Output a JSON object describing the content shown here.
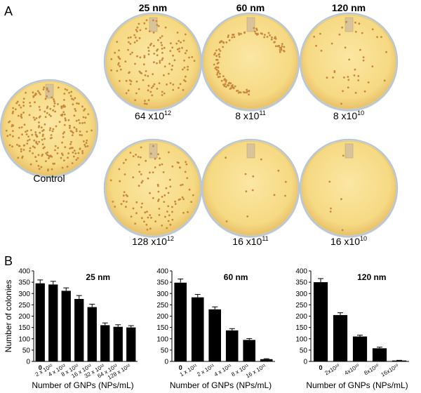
{
  "panel_a": {
    "label": "A",
    "column_titles": [
      "25 nm",
      "60 nm",
      "120 nm"
    ],
    "control_label": "Control",
    "plates": [
      {
        "row": 0,
        "col": 0,
        "caption_base": "64 x10",
        "caption_exp": "12",
        "colonies": 150
      },
      {
        "row": 0,
        "col": 1,
        "caption_base": "8 x10",
        "caption_exp": "11",
        "colonies": 120
      },
      {
        "row": 0,
        "col": 2,
        "caption_base": "8 x10",
        "caption_exp": "10",
        "colonies": 40
      },
      {
        "row": 1,
        "col": 0,
        "caption_base": "128 x10",
        "caption_exp": "12",
        "colonies": 110
      },
      {
        "row": 1,
        "col": 1,
        "caption_base": "16 x10",
        "caption_exp": "11",
        "colonies": 12
      },
      {
        "row": 1,
        "col": 2,
        "caption_base": "16 x10",
        "caption_exp": "10",
        "colonies": 6
      }
    ],
    "colors": {
      "agar": "#f7dd8c",
      "agar_edge": "#e7c468",
      "rim": "#b9c7d3",
      "colony": "#c9893c"
    }
  },
  "panel_b": {
    "label": "B"
  },
  "chart_data": [
    {
      "type": "bar",
      "title": "25 nm",
      "ylabel": "Number of colonies",
      "xlabel": "Number of GNPs (NPs/mL)",
      "ylim": [
        0,
        400
      ],
      "yticks": [
        "0",
        "50",
        "100",
        "150",
        "200",
        "250",
        "300",
        "350",
        "400"
      ],
      "categories": [
        "0",
        "2 x 10¹²",
        "4 x 10¹²",
        "8 x 10¹²",
        "16 x 10¹²",
        "32 x 10¹²",
        "64 x 10¹²",
        "128 x 10¹²"
      ],
      "values": [
        345,
        340,
        312,
        276,
        240,
        160,
        153,
        150
      ],
      "errors": [
        15,
        14,
        13,
        15,
        13,
        10,
        9,
        8
      ]
    },
    {
      "type": "bar",
      "title": "60 nm",
      "ylabel": "",
      "xlabel": "Number of GNPs (NPs/mL)",
      "ylim": [
        0,
        400
      ],
      "yticks": [
        "0",
        "50",
        "100",
        "150",
        "200",
        "250",
        "300",
        "350",
        "400"
      ],
      "categories": [
        "0",
        "1 x 10¹¹",
        "2 x 10¹¹",
        "4 x 10¹¹",
        "8 x 10¹¹",
        "16 x 10¹¹"
      ],
      "values": [
        348,
        283,
        230,
        137,
        95,
        10
      ],
      "errors": [
        16,
        13,
        11,
        8,
        6,
        2
      ]
    },
    {
      "type": "bar",
      "title": "120 nm",
      "ylabel": "",
      "xlabel": "Number of GNPs (NPs/mL)",
      "ylim": [
        0,
        400
      ],
      "yticks": [
        "0",
        "50",
        "100",
        "150",
        "200",
        "250",
        "300",
        "350",
        "400"
      ],
      "categories": [
        "0",
        "2x10¹⁰",
        "4x10¹⁰",
        "8x10¹⁰",
        "16x10¹⁰"
      ],
      "values": [
        350,
        205,
        110,
        58,
        4
      ],
      "errors": [
        16,
        10,
        6,
        5,
        1
      ]
    }
  ]
}
